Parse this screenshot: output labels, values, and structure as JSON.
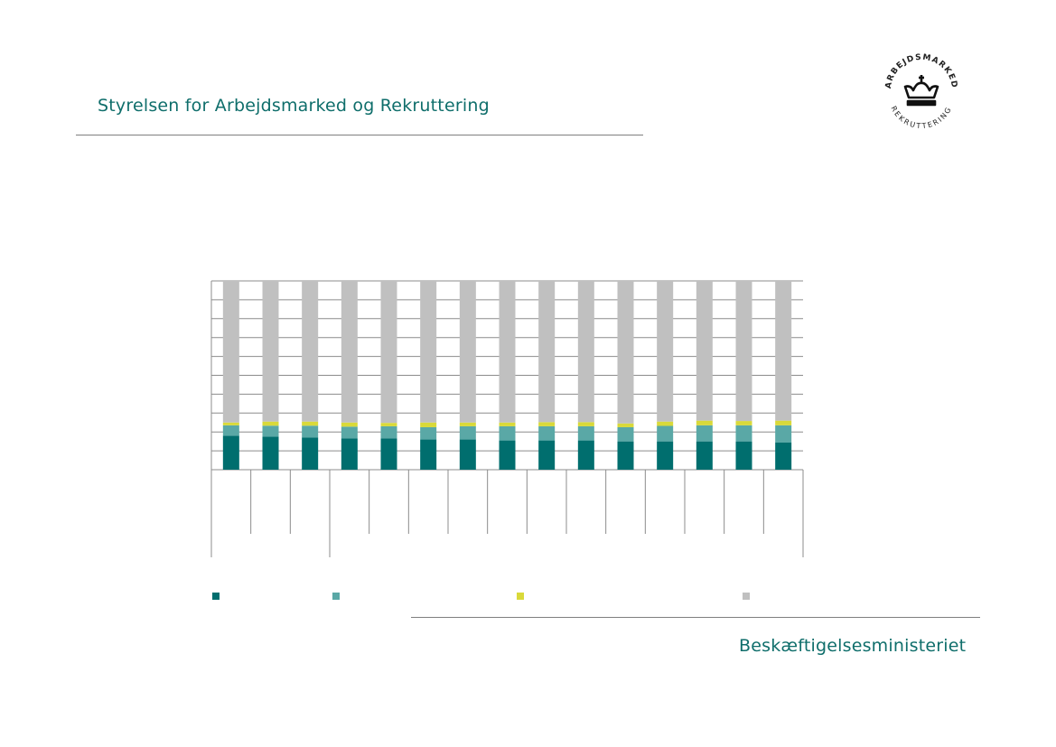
{
  "header": {
    "title": "Styrelsen for Arbejdsmarked og Rekruttering"
  },
  "logo": {
    "top_text": "ARBEJDSMARKED",
    "bottom_text": "REKRUTTERING",
    "icon": "crown-icon"
  },
  "footer": {
    "ministry": "Beskæftigelsesministeriet"
  },
  "colors": {
    "brand_teal": "#0f6e6b",
    "series_1": "#006e6e",
    "series_2": "#5aa8a6",
    "series_3": "#d9d93a",
    "series_4": "#c0c0c0"
  },
  "chart_data": {
    "type": "bar",
    "stacked": true,
    "title": "",
    "xlabel": "",
    "ylabel": "",
    "ylim": [
      0,
      100
    ],
    "gridlines": 10,
    "categories": [
      "",
      "",
      "",
      "",
      "",
      "",
      "",
      "",
      "",
      "",
      "",
      "",
      "",
      "",
      ""
    ],
    "series": [
      {
        "color": "#006e6e",
        "values": [
          18,
          17.5,
          17,
          16.5,
          16.5,
          16,
          16,
          15.5,
          15.5,
          15.5,
          15,
          15,
          15,
          15,
          14.5
        ]
      },
      {
        "color": "#5aa8a6",
        "values": [
          5.5,
          5.8,
          6.3,
          6.3,
          6.5,
          6.5,
          7,
          7.5,
          7.5,
          7.5,
          7.5,
          8.2,
          8.5,
          8.5,
          9
        ]
      },
      {
        "color": "#d9d93a",
        "values": [
          1.5,
          2.2,
          2.2,
          2.2,
          1.8,
          2.5,
          2,
          2,
          2.2,
          2.2,
          2,
          2.3,
          2.5,
          2.3,
          2.5
        ]
      },
      {
        "color": "#c0c0c0",
        "values": [
          75,
          74.5,
          74.5,
          75,
          75.2,
          75,
          75,
          75,
          74.8,
          74.8,
          75.5,
          74.5,
          74,
          74.2,
          74
        ]
      }
    ],
    "legend_position": "bottom"
  }
}
